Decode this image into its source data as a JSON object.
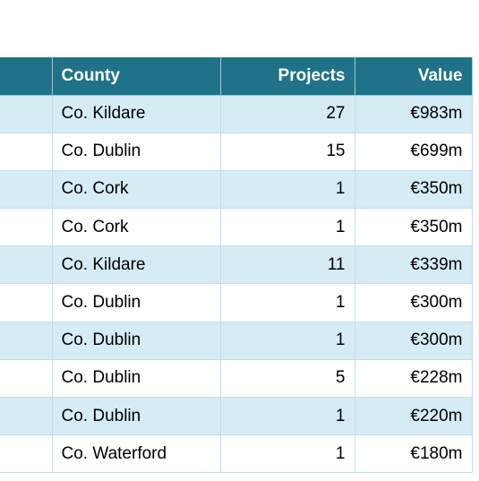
{
  "table": {
    "headers": {
      "blank": "",
      "county": "County",
      "projects": "Projects",
      "value": "Value"
    },
    "rows": [
      {
        "county": "Co. Kildare",
        "projects": "27",
        "value": "€983m"
      },
      {
        "county": "Co. Dublin",
        "projects": "15",
        "value": "€699m"
      },
      {
        "county": "Co. Cork",
        "projects": "1",
        "value": "€350m"
      },
      {
        "county": "Co. Cork",
        "projects": "1",
        "value": "€350m"
      },
      {
        "county": "Co. Kildare",
        "projects": "11",
        "value": "€339m"
      },
      {
        "county": "Co. Dublin",
        "projects": "1",
        "value": "€300m"
      },
      {
        "county": "Co. Dublin",
        "projects": "1",
        "value": "€300m"
      },
      {
        "county": "Co. Dublin",
        "projects": "5",
        "value": "€228m"
      },
      {
        "county": "Co. Dublin",
        "projects": "1",
        "value": "€220m"
      },
      {
        "county": "Co. Waterford",
        "projects": "1",
        "value": "€180m"
      }
    ]
  },
  "colors": {
    "header_bg": "#1f7288",
    "row_alt_bg": "#d6ecf5",
    "row_bg": "#ffffff"
  }
}
